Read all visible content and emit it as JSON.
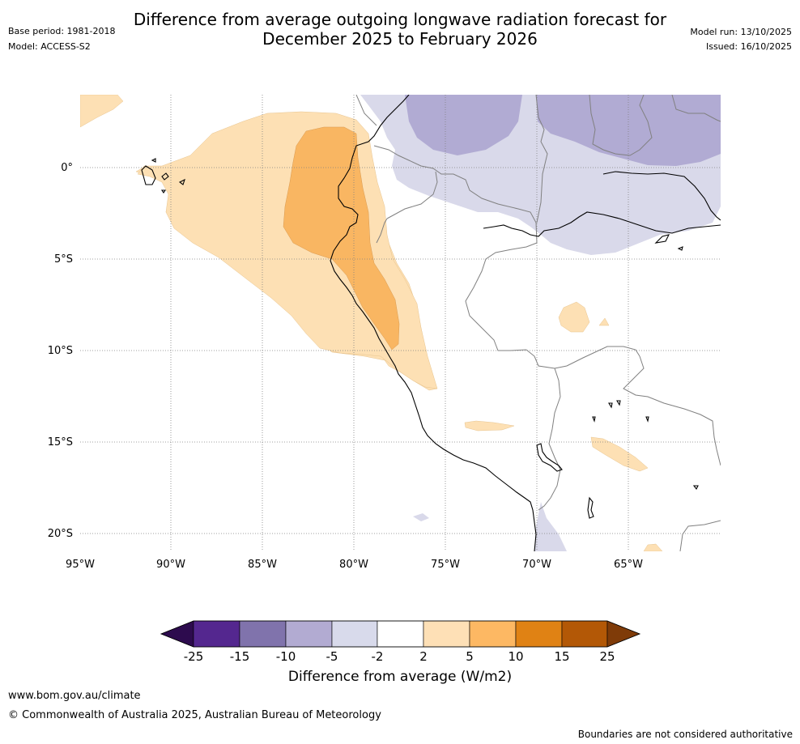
{
  "header": {
    "title_line1": "Difference from average outgoing longwave radiation forecast for",
    "title_line2": "December 2025 to February 2026",
    "base_period": "Base period: 1981-2018",
    "model": "Model: ACCESS-S2",
    "model_run": "Model run: 13/10/2025",
    "issued": "Issued: 16/10/2025"
  },
  "map": {
    "lat_labels": [
      "0°",
      "5°S",
      "10°S",
      "15°S",
      "20°S"
    ],
    "lon_labels": [
      "95°W",
      "90°W",
      "85°W",
      "80°W",
      "75°W",
      "70°W",
      "65°W"
    ],
    "colors": {
      "orange_light": "#fde0b4",
      "orange_mid": "#f9b662",
      "purple_light": "#d9d9ea",
      "purple_mid": "#b1abd3",
      "coast": "#000000",
      "border": "#808080",
      "grid": "#808080"
    }
  },
  "colorbar": {
    "labels": [
      "-25",
      "-15",
      "-10",
      "-5",
      "-2",
      "2",
      "5",
      "10",
      "15",
      "25"
    ],
    "colors": [
      "#2d0b4e",
      "#54278f",
      "#8073ac",
      "#b2abd2",
      "#d8daeb",
      "#ffffff",
      "#fee0b6",
      "#fdb863",
      "#e08214",
      "#b35806",
      "#7f3b08"
    ],
    "title": "Difference from average (W/m2)"
  },
  "footer": {
    "url": "www.bom.gov.au/climate",
    "copyright": "© Commonwealth of Australia 2025, Australian Bureau of Meteorology",
    "disclaimer": "Boundaries are not considered authoritative"
  }
}
